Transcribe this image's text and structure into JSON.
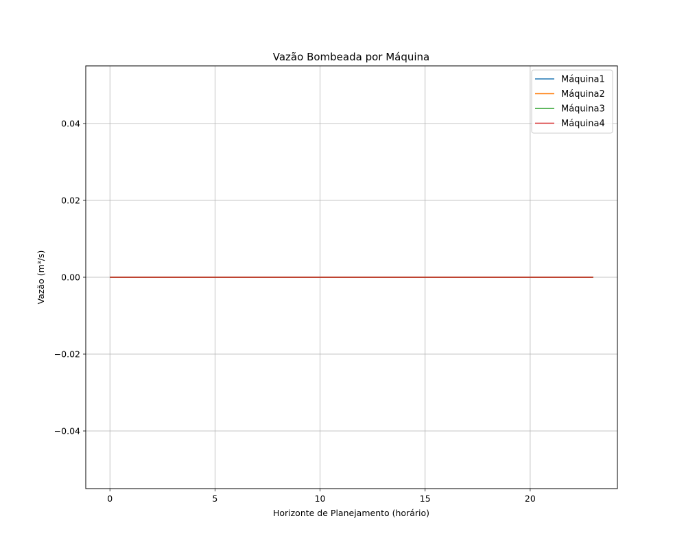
{
  "chart_data": {
    "type": "line",
    "title": "Vazão Bombeada por Máquina",
    "xlabel": "Horizonte de Planejamento (horário)",
    "ylabel": "Vazão (m³/s)",
    "xlim": [
      -1.15,
      24.15
    ],
    "ylim": [
      -0.055,
      0.055
    ],
    "x_ticks": [
      0,
      5,
      10,
      15,
      20
    ],
    "x_tick_labels": [
      "0",
      "5",
      "10",
      "15",
      "20"
    ],
    "y_ticks": [
      -0.04,
      -0.02,
      0.0,
      0.02,
      0.04
    ],
    "y_tick_labels": [
      "−0.04",
      "−0.02",
      "0.00",
      "0.02",
      "0.04"
    ],
    "grid": true,
    "legend_position": "top-right",
    "x": [
      0,
      1,
      2,
      3,
      4,
      5,
      6,
      7,
      8,
      9,
      10,
      11,
      12,
      13,
      14,
      15,
      16,
      17,
      18,
      19,
      20,
      21,
      22,
      23
    ],
    "series": [
      {
        "name": "Máquina1",
        "color": "#1f77b4",
        "values": [
          0,
          0,
          0,
          0,
          0,
          0,
          0,
          0,
          0,
          0,
          0,
          0,
          0,
          0,
          0,
          0,
          0,
          0,
          0,
          0,
          0,
          0,
          0,
          0
        ]
      },
      {
        "name": "Máquina2",
        "color": "#ff7f0e",
        "values": [
          0,
          0,
          0,
          0,
          0,
          0,
          0,
          0,
          0,
          0,
          0,
          0,
          0,
          0,
          0,
          0,
          0,
          0,
          0,
          0,
          0,
          0,
          0,
          0
        ]
      },
      {
        "name": "Máquina3",
        "color": "#2ca02c",
        "values": [
          0,
          0,
          0,
          0,
          0,
          0,
          0,
          0,
          0,
          0,
          0,
          0,
          0,
          0,
          0,
          0,
          0,
          0,
          0,
          0,
          0,
          0,
          0,
          0
        ]
      },
      {
        "name": "Máquina4",
        "color": "#d62728",
        "values": [
          0,
          0,
          0,
          0,
          0,
          0,
          0,
          0,
          0,
          0,
          0,
          0,
          0,
          0,
          0,
          0,
          0,
          0,
          0,
          0,
          0,
          0,
          0,
          0
        ]
      }
    ]
  }
}
